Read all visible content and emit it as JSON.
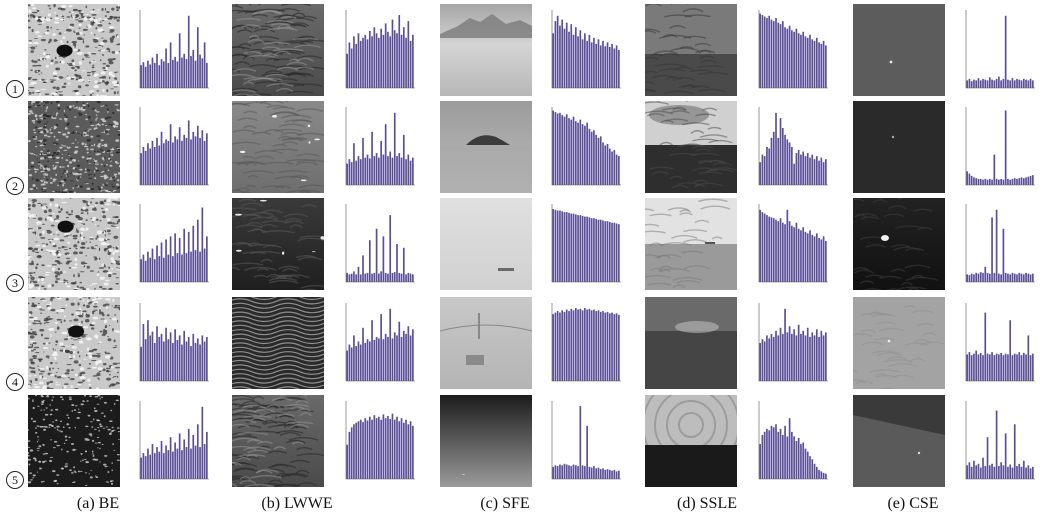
{
  "columns": [
    {
      "caption": "(a) BE"
    },
    {
      "caption": "(b) LWWE"
    },
    {
      "caption": "(c) SFE"
    },
    {
      "caption": "(d) SSLE"
    },
    {
      "caption": "(e) CSE"
    }
  ],
  "rows": [
    {
      "label": "1"
    },
    {
      "label": "2"
    },
    {
      "label": "3"
    },
    {
      "label": "4"
    },
    {
      "label": "5"
    }
  ],
  "scenes": [
    [
      "textured-bright-sea-dark-object",
      "grey-wavy-sea",
      "misty-mountain-horizon",
      "overcast-sea-horizon",
      "dark-grey-sea-tiny-target"
    ],
    [
      "speckled-sea-surface",
      "grey-sea-white-marks",
      "foggy-island",
      "dark-sea-cloudy-sky",
      "dark-sea-tiny-target"
    ],
    [
      "bright-sea-dark-spot",
      "dark-sea-white-birds",
      "bright-fog-small-ship",
      "pale-sea-distant-ships",
      "dark-sea-bright-boat"
    ],
    [
      "textured-sea-dark-object",
      "rippled-dark-waves",
      "fog-bridge-ship",
      "dark-sea-haze",
      "light-grey-sea-dot"
    ],
    [
      "dark-sea-glitter",
      "grey-wavy-sea-flat",
      "dark-gradient-sea",
      "concentric-glare-horizon",
      "grey-sea-diagonal-shore"
    ]
  ],
  "colors": {
    "bar": "#5a4e96",
    "axis": "#555555"
  },
  "chart_data": {
    "type": "bar",
    "grid": false,
    "note": "Each panel is a histogram of the grayscale image to its left; values estimated relative to each panel's y-maximum.",
    "panels": [
      [
        {
          "values": [
            0.3,
            0.34,
            0.28,
            0.36,
            0.31,
            0.4,
            0.33,
            0.45,
            0.3,
            0.38,
            0.35,
            0.52,
            0.33,
            0.6,
            0.37,
            0.41,
            0.35,
            0.72,
            0.4,
            0.45,
            0.38,
            0.95,
            0.42,
            0.5,
            0.36,
            0.8,
            0.44,
            0.39,
            0.6,
            0.33
          ]
        },
        {
          "values": [
            0.45,
            0.6,
            0.52,
            0.68,
            0.58,
            0.72,
            0.62,
            0.66,
            0.7,
            0.64,
            0.75,
            0.68,
            0.8,
            0.72,
            0.66,
            0.78,
            0.7,
            0.85,
            0.74,
            0.68,
            0.9,
            0.76,
            0.72,
            0.96,
            0.7,
            0.8,
            0.66,
            0.88,
            0.62,
            0.7
          ]
        },
        {
          "values": [
            0.72,
            0.88,
            0.95,
            0.82,
            0.9,
            0.78,
            0.86,
            0.74,
            0.84,
            0.7,
            0.8,
            0.68,
            0.76,
            0.64,
            0.72,
            0.62,
            0.7,
            0.6,
            0.66,
            0.58,
            0.64,
            0.56,
            0.62,
            0.55,
            0.6,
            0.54,
            0.58,
            0.52,
            0.56,
            0.5
          ]
        },
        {
          "values": [
            0.98,
            0.96,
            0.94,
            0.92,
            0.95,
            0.9,
            0.88,
            0.92,
            0.86,
            0.84,
            0.88,
            0.8,
            0.78,
            0.82,
            0.76,
            0.74,
            0.78,
            0.72,
            0.7,
            0.74,
            0.68,
            0.66,
            0.7,
            0.64,
            0.62,
            0.66,
            0.6,
            0.58,
            0.62,
            0.56
          ]
        },
        {
          "values": [
            0.1,
            0.12,
            0.09,
            0.11,
            0.1,
            0.13,
            0.1,
            0.12,
            0.11,
            0.1,
            0.14,
            0.11,
            0.1,
            0.12,
            0.15,
            0.1,
            0.12,
            0.95,
            0.11,
            0.1,
            0.13,
            0.1,
            0.12,
            0.11,
            0.1,
            0.12,
            0.11,
            0.1,
            0.12,
            0.1
          ]
        }
      ],
      [
        {
          "values": [
            0.42,
            0.5,
            0.45,
            0.55,
            0.48,
            0.58,
            0.5,
            0.62,
            0.52,
            0.7,
            0.55,
            0.6,
            0.58,
            0.8,
            0.56,
            0.64,
            0.6,
            0.76,
            0.58,
            0.66,
            0.62,
            0.85,
            0.6,
            0.7,
            0.64,
            0.78,
            0.62,
            0.72,
            0.58,
            0.68
          ]
        },
        {
          "values": [
            0.28,
            0.34,
            0.3,
            0.55,
            0.32,
            0.38,
            0.34,
            0.62,
            0.36,
            0.4,
            0.35,
            0.7,
            0.38,
            0.42,
            0.36,
            0.58,
            0.4,
            0.8,
            0.38,
            0.44,
            0.36,
            0.95,
            0.38,
            0.42,
            0.36,
            0.66,
            0.34,
            0.4,
            0.32,
            0.36
          ]
        },
        {
          "values": [
            0.98,
            0.96,
            0.94,
            0.95,
            0.92,
            0.9,
            0.93,
            0.88,
            0.86,
            0.9,
            0.84,
            0.82,
            0.86,
            0.8,
            0.78,
            0.82,
            0.74,
            0.7,
            0.72,
            0.66,
            0.62,
            0.64,
            0.56,
            0.52,
            0.54,
            0.48,
            0.44,
            0.46,
            0.4,
            0.38
          ]
        },
        {
          "values": [
            0.3,
            0.4,
            0.38,
            0.5,
            0.48,
            0.62,
            0.7,
            0.95,
            0.62,
            0.88,
            0.75,
            0.66,
            0.6,
            0.56,
            0.5,
            0.28,
            0.42,
            0.46,
            0.4,
            0.44,
            0.38,
            0.42,
            0.36,
            0.4,
            0.34,
            0.38,
            0.32,
            0.36,
            0.3,
            0.34
          ]
        },
        {
          "values": [
            0.18,
            0.15,
            0.12,
            0.1,
            0.09,
            0.08,
            0.08,
            0.07,
            0.08,
            0.07,
            0.08,
            0.07,
            0.4,
            0.08,
            0.07,
            0.08,
            0.07,
            0.98,
            0.08,
            0.07,
            0.08,
            0.09,
            0.08,
            0.09,
            0.1,
            0.09,
            0.1,
            0.11,
            0.12,
            0.13
          ]
        }
      ],
      [
        {
          "values": [
            0.3,
            0.36,
            0.28,
            0.4,
            0.32,
            0.44,
            0.3,
            0.48,
            0.34,
            0.52,
            0.32,
            0.56,
            0.36,
            0.6,
            0.34,
            0.64,
            0.38,
            0.58,
            0.36,
            0.7,
            0.38,
            0.66,
            0.4,
            0.74,
            0.42,
            0.82,
            0.4,
            0.98,
            0.44,
            0.6
          ]
        },
        {
          "values": [
            0.12,
            0.1,
            0.11,
            0.14,
            0.1,
            0.2,
            0.1,
            0.35,
            0.11,
            0.12,
            0.55,
            0.11,
            0.12,
            0.7,
            0.11,
            0.14,
            0.6,
            0.12,
            0.11,
            0.88,
            0.12,
            0.13,
            0.5,
            0.12,
            0.11,
            0.45,
            0.1,
            0.12,
            0.11,
            0.1
          ]
        },
        {
          "values": [
            0.96,
            0.95,
            0.94,
            0.94,
            0.93,
            0.92,
            0.92,
            0.91,
            0.9,
            0.9,
            0.89,
            0.88,
            0.88,
            0.87,
            0.86,
            0.86,
            0.85,
            0.84,
            0.84,
            0.83,
            0.82,
            0.82,
            0.81,
            0.8,
            0.8,
            0.79,
            0.78,
            0.78,
            0.77,
            0.76
          ]
        },
        {
          "values": [
            0.95,
            0.92,
            0.9,
            0.88,
            0.86,
            0.85,
            0.84,
            0.82,
            0.8,
            0.84,
            0.78,
            0.76,
            0.95,
            0.8,
            0.74,
            0.72,
            0.78,
            0.7,
            0.68,
            0.72,
            0.66,
            0.64,
            0.68,
            0.62,
            0.6,
            0.64,
            0.58,
            0.56,
            0.6,
            0.54
          ]
        },
        {
          "values": [
            0.1,
            0.09,
            0.11,
            0.1,
            0.12,
            0.11,
            0.13,
            0.12,
            0.2,
            0.12,
            0.11,
            0.85,
            0.12,
            0.95,
            0.11,
            0.1,
            0.7,
            0.12,
            0.11,
            0.1,
            0.12,
            0.11,
            0.1,
            0.12,
            0.11,
            0.1,
            0.12,
            0.11,
            0.1,
            0.11
          ]
        }
      ],
      [
        {
          "values": [
            0.45,
            0.75,
            0.55,
            0.8,
            0.6,
            0.65,
            0.5,
            0.72,
            0.58,
            0.62,
            0.52,
            0.7,
            0.55,
            0.64,
            0.5,
            0.68,
            0.54,
            0.6,
            0.48,
            0.66,
            0.52,
            0.58,
            0.46,
            0.62,
            0.5,
            0.56,
            0.48,
            0.6,
            0.52,
            0.58
          ]
        },
        {
          "values": [
            0.4,
            0.48,
            0.44,
            0.6,
            0.46,
            0.52,
            0.48,
            0.7,
            0.5,
            0.55,
            0.52,
            0.8,
            0.54,
            0.58,
            0.56,
            0.88,
            0.55,
            0.62,
            0.58,
            0.95,
            0.56,
            0.64,
            0.6,
            0.78,
            0.58,
            0.66,
            0.62,
            0.72,
            0.6,
            0.68
          ]
        },
        {
          "values": [
            0.88,
            0.9,
            0.92,
            0.9,
            0.93,
            0.91,
            0.94,
            0.92,
            0.95,
            0.93,
            0.96,
            0.94,
            0.95,
            0.93,
            0.96,
            0.94,
            0.95,
            0.93,
            0.94,
            0.92,
            0.93,
            0.91,
            0.92,
            0.9,
            0.91,
            0.89,
            0.9,
            0.88,
            0.89,
            0.87
          ]
        },
        {
          "values": [
            0.5,
            0.55,
            0.52,
            0.6,
            0.56,
            0.62,
            0.58,
            0.66,
            0.6,
            0.7,
            0.62,
            0.95,
            0.64,
            0.72,
            0.62,
            0.68,
            0.6,
            0.74,
            0.62,
            0.66,
            0.6,
            0.7,
            0.58,
            0.64,
            0.6,
            0.68,
            0.58,
            0.66,
            0.6,
            0.64
          ]
        },
        {
          "values": [
            0.35,
            0.38,
            0.34,
            0.36,
            0.4,
            0.35,
            0.37,
            0.34,
            0.9,
            0.36,
            0.35,
            0.38,
            0.34,
            0.36,
            0.35,
            0.37,
            0.34,
            0.36,
            0.35,
            0.8,
            0.34,
            0.36,
            0.35,
            0.38,
            0.34,
            0.37,
            0.35,
            0.6,
            0.34,
            0.36
          ]
        }
      ],
      [
        {
          "values": [
            0.28,
            0.34,
            0.3,
            0.4,
            0.32,
            0.46,
            0.34,
            0.42,
            0.36,
            0.5,
            0.34,
            0.44,
            0.38,
            0.55,
            0.36,
            0.48,
            0.4,
            0.6,
            0.38,
            0.52,
            0.42,
            0.66,
            0.4,
            0.58,
            0.44,
            0.72,
            0.42,
            0.95,
            0.46,
            0.62
          ]
        },
        {
          "values": [
            0.45,
            0.62,
            0.68,
            0.72,
            0.74,
            0.76,
            0.78,
            0.75,
            0.8,
            0.77,
            0.82,
            0.78,
            0.84,
            0.8,
            0.82,
            0.78,
            0.85,
            0.8,
            0.83,
            0.79,
            0.86,
            0.78,
            0.82,
            0.76,
            0.8,
            0.74,
            0.78,
            0.72,
            0.76,
            0.7
          ]
        },
        {
          "values": [
            0.16,
            0.18,
            0.17,
            0.19,
            0.18,
            0.2,
            0.19,
            0.18,
            0.17,
            0.19,
            0.18,
            0.17,
            0.96,
            0.18,
            0.17,
            0.7,
            0.16,
            0.15,
            0.17,
            0.14,
            0.15,
            0.13,
            0.14,
            0.12,
            0.13,
            0.12,
            0.11,
            0.12,
            0.1,
            0.11
          ]
        },
        {
          "values": [
            0.46,
            0.58,
            0.62,
            0.66,
            0.64,
            0.7,
            0.68,
            0.72,
            0.62,
            0.66,
            0.58,
            0.7,
            0.56,
            0.8,
            0.62,
            0.56,
            0.5,
            0.54,
            0.46,
            0.48,
            0.4,
            0.36,
            0.3,
            0.26,
            0.2,
            0.16,
            0.12,
            0.1,
            0.08,
            0.07
          ]
        },
        {
          "values": [
            0.18,
            0.22,
            0.16,
            0.24,
            0.18,
            0.2,
            0.15,
            0.28,
            0.17,
            0.55,
            0.18,
            0.2,
            0.16,
            0.9,
            0.17,
            0.22,
            0.18,
            0.6,
            0.16,
            0.19,
            0.15,
            0.72,
            0.17,
            0.2,
            0.16,
            0.24,
            0.15,
            0.18,
            0.14,
            0.16
          ]
        }
      ]
    ]
  }
}
